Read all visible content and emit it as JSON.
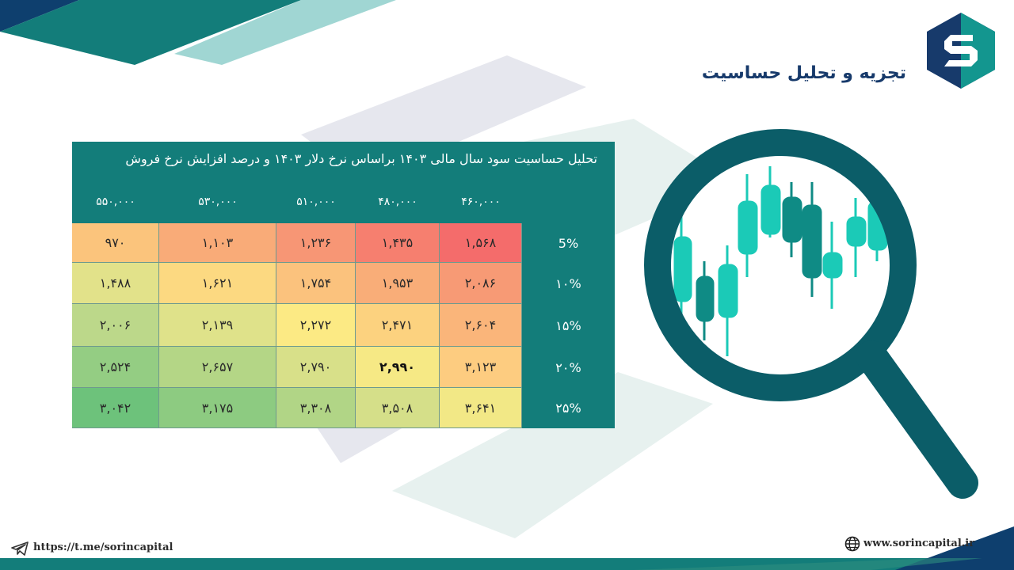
{
  "header": {
    "title": "تجزیه و تحلیل حساسیت"
  },
  "table": {
    "caption": "تحلیل حساسیت سود سال مالی ۱۴۰۳ براساس نرخ دلار ۱۴۰۳  و درصد افزایش نرخ فروش",
    "columns": [
      "۵۵۰,۰۰۰",
      "۵۳۰,۰۰۰",
      "۵۱۰,۰۰۰",
      "۴۸۰,۰۰۰",
      "۴۶۰,۰۰۰"
    ],
    "rows": [
      {
        "label": "5%",
        "values": [
          "۹۷۰",
          "۱,۱۰۳",
          "۱,۲۳۶",
          "۱,۴۳۵",
          "۱,۵۶۸"
        ]
      },
      {
        "label": "۱۰%",
        "values": [
          "۱,۴۸۸",
          "۱,۶۲۱",
          "۱,۷۵۴",
          "۱,۹۵۳",
          "۲,۰۸۶"
        ]
      },
      {
        "label": "۱۵%",
        "values": [
          "۲,۰۰۶",
          "۲,۱۳۹",
          "۲,۲۷۲",
          "۲,۴۷۱",
          "۲,۶۰۴"
        ]
      },
      {
        "label": "۲۰%",
        "values": [
          "۲,۵۲۴",
          "۲,۶۵۷",
          "۲,۷۹۰",
          "۲,۹۹۰",
          "۳,۱۲۳"
        ]
      },
      {
        "label": "۲۵%",
        "values": [
          "۳,۰۴۲",
          "۳,۱۷۵",
          "۳,۳۰۸",
          "۳,۵۰۸",
          "۳,۶۴۱"
        ]
      }
    ],
    "colors": [
      [
        "#fbc47c",
        "#f9ab78",
        "#f79675",
        "#f67f6f",
        "#f46c6b"
      ],
      [
        "#e2e28a",
        "#fcd981",
        "#fbc27d",
        "#f9ad78",
        "#f79a75"
      ],
      [
        "#bcd88a",
        "#dfe28a",
        "#fcea84",
        "#fcd27f",
        "#fab57a"
      ],
      [
        "#94cd83",
        "#b4d686",
        "#d8e089",
        "#f6e985",
        "#fdcc80"
      ],
      [
        "#6dc27b",
        "#8dcb81",
        "#b1d586",
        "#d5df89",
        "#f2e886"
      ]
    ]
  },
  "footer": {
    "telegram": "https://t.me/sorincapital",
    "website": "www.sorincapital.ir"
  },
  "icons": {
    "logo": "sorin-logo-icon",
    "magnifier": "magnifying-glass-candlestick-icon",
    "telegram": "telegram-icon",
    "globe": "globe-icon"
  }
}
